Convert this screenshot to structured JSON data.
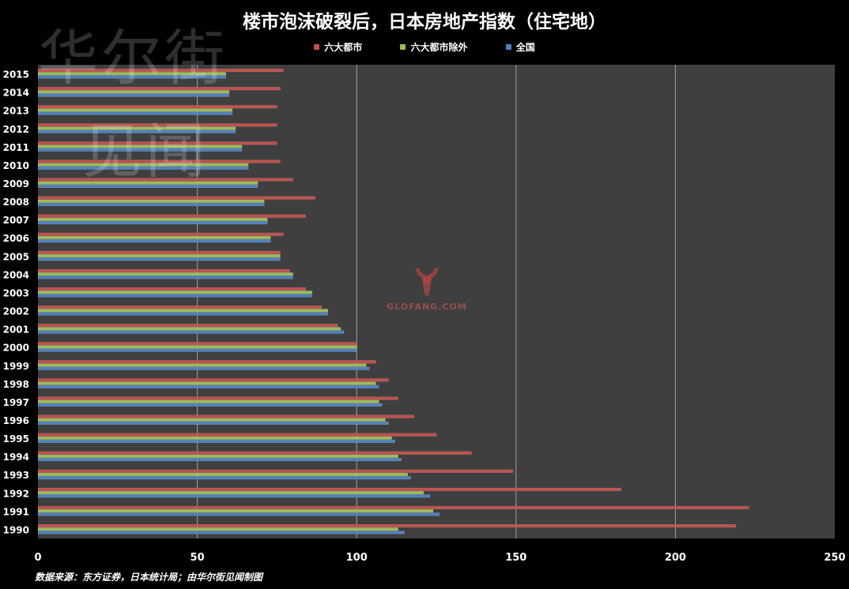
{
  "chart_data": {
    "type": "bar",
    "orientation": "horizontal",
    "title": "楼市泡沫破裂后，日本房地产指数（住宅地）",
    "categories": [
      "1990",
      "1991",
      "1992",
      "1993",
      "1994",
      "1995",
      "1996",
      "1997",
      "1998",
      "1999",
      "2000",
      "2001",
      "2002",
      "2003",
      "2004",
      "2005",
      "2006",
      "2007",
      "2008",
      "2009",
      "2010",
      "2011",
      "2012",
      "2013",
      "2014",
      "2015"
    ],
    "series": [
      {
        "name": "六大都市",
        "color": "#c0504d",
        "values": [
          219,
          223,
          183,
          149,
          136,
          125,
          118,
          113,
          110,
          106,
          100,
          94,
          89,
          84,
          79,
          76,
          77,
          84,
          87,
          80,
          76,
          75,
          75,
          75,
          76,
          77
        ]
      },
      {
        "name": "六大都市除外",
        "color": "#9bbb59",
        "values": [
          113,
          124,
          121,
          116,
          113,
          111,
          109,
          107,
          106,
          103,
          100,
          95,
          91,
          86,
          80,
          76,
          73,
          72,
          71,
          69,
          66,
          64,
          62,
          61,
          60,
          59
        ]
      },
      {
        "name": "全国",
        "color": "#4f81bd",
        "values": [
          115,
          126,
          123,
          117,
          114,
          112,
          110,
          108,
          107,
          104,
          100,
          96,
          91,
          86,
          80,
          76,
          73,
          72,
          71,
          69,
          66,
          64,
          62,
          61,
          60,
          59
        ]
      }
    ],
    "xlim": [
      0,
      250
    ],
    "xticks": [
      "0",
      "50",
      "100",
      "150",
      "200",
      "250"
    ],
    "grid": true,
    "legend": "top-center",
    "source": "数据来源：东方证券，日本统计局；由华尔街见闻制图"
  },
  "watermark": {
    "line1": "华尔街",
    "line2": "见闻"
  },
  "logo": {
    "text": "GLOFANG.COM",
    "color": "#c0504d"
  },
  "colors": {
    "background": "#000000",
    "plot_background": "#3f3f3f",
    "grid": "#a0a0a0"
  }
}
